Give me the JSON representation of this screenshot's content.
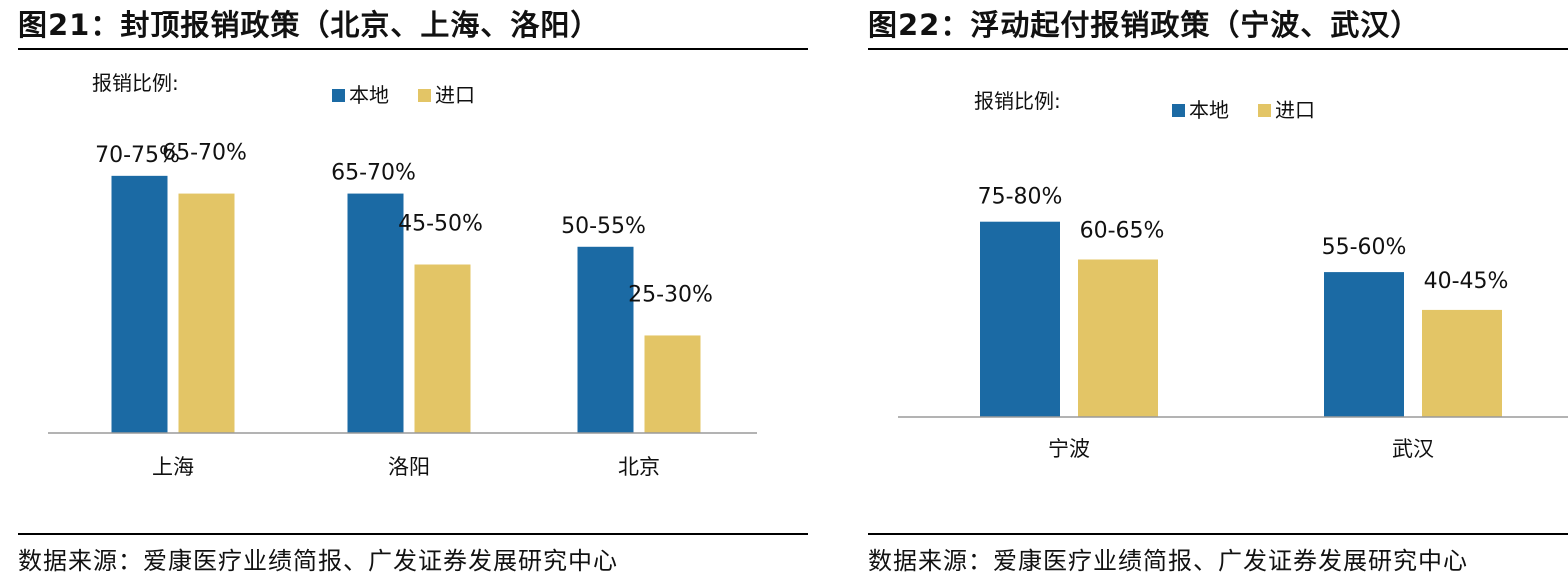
{
  "colors": {
    "local": "#1b6aa4",
    "import": "#e3c566",
    "axis": "#9a9a9a",
    "text": "#111111"
  },
  "chart_data": [
    {
      "type": "bar",
      "title": "图21：封顶报销政策（北京、上海、洛阳）",
      "note": "报销比例:",
      "categories": [
        "上海",
        "洛阳",
        "北京"
      ],
      "series": [
        {
          "name": "本地",
          "values": [
            72.5,
            67.5,
            52.5
          ],
          "labels": [
            "70-75%",
            "65-70%",
            "50-55%"
          ]
        },
        {
          "name": "进口",
          "values": [
            67.5,
            47.5,
            27.5
          ],
          "labels": [
            "65-70%",
            "45-50%",
            "25-30%"
          ]
        }
      ],
      "ylim": [
        0,
        100
      ],
      "legend": "top-center",
      "grid": false,
      "source": "数据来源：爱康医疗业绩简报、广发证券发展研究中心"
    },
    {
      "type": "bar",
      "title": "图22：浮动起付报销政策（宁波、武汉）",
      "note": "报销比例:",
      "categories": [
        "宁波",
        "武汉"
      ],
      "series": [
        {
          "name": "本地",
          "values": [
            77.5,
            57.5
          ],
          "labels": [
            "75-80%",
            "55-60%"
          ]
        },
        {
          "name": "进口",
          "values": [
            62.5,
            42.5
          ],
          "labels": [
            "60-65%",
            "40-45%"
          ]
        }
      ],
      "ylim": [
        0,
        100
      ],
      "legend": "top-center",
      "grid": false,
      "source": "数据来源：爱康医疗业绩简报、广发证券发展研究中心"
    }
  ]
}
